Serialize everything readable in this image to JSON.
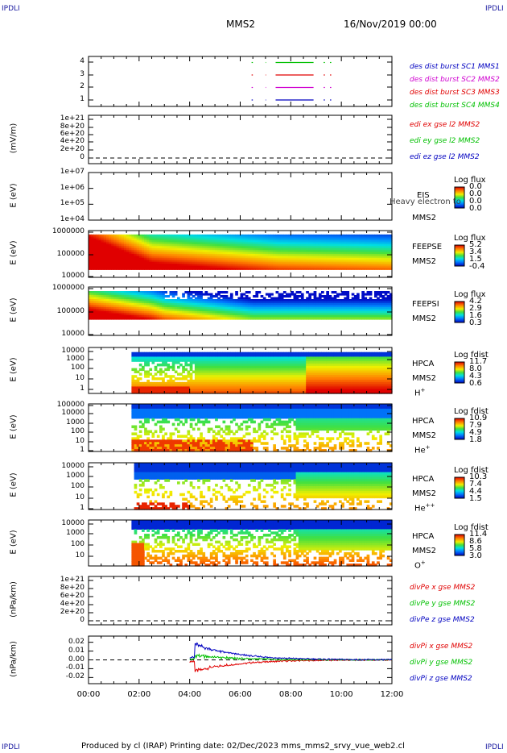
{
  "header": {
    "title": "MMS2",
    "date": "16/Nov/2019 00:00",
    "corner_label": "IPDLI"
  },
  "footer": {
    "text": "Produced by cl (IRAP)   Printing date: 02/Dec/2023   mms_mms2_srvy_vue_web2.cl"
  },
  "colors": {
    "red": "#e00000",
    "green": "#00c000",
    "blue": "#0000c0",
    "magenta": "#d000d0"
  },
  "x_axis": {
    "ticks": [
      "00:00",
      "02:00",
      "04:00",
      "06:00",
      "08:00",
      "10:00",
      "12:00"
    ],
    "range_hours": [
      0,
      12
    ]
  },
  "chart_data": [
    {
      "type": "line",
      "panel": "burst",
      "yticks": [
        "4",
        "3",
        "2",
        "1"
      ],
      "series": [
        {
          "name": "des dist burst SC1 MMS1",
          "color": "#0000c0",
          "level": 1,
          "intervals": [
            [
              6.45,
              6.5
            ],
            [
              7.0,
              7.02
            ],
            [
              7.4,
              8.9
            ],
            [
              9.3,
              9.35
            ],
            [
              9.55,
              9.6
            ]
          ]
        },
        {
          "name": "des dist burst SC2 MMS2",
          "color": "#d000d0",
          "level": 2,
          "intervals": [
            [
              6.45,
              6.5
            ],
            [
              7.0,
              7.02
            ],
            [
              7.4,
              8.9
            ],
            [
              9.3,
              9.35
            ],
            [
              9.55,
              9.6
            ]
          ]
        },
        {
          "name": "des dist burst SC3 MMS3",
          "color": "#e00000",
          "level": 3,
          "intervals": [
            [
              6.45,
              6.5
            ],
            [
              7.0,
              7.02
            ],
            [
              7.4,
              8.9
            ],
            [
              9.3,
              9.35
            ],
            [
              9.55,
              9.6
            ]
          ]
        },
        {
          "name": "des dist burst SC4 MMS4",
          "color": "#00c000",
          "level": 4,
          "intervals": [
            [
              6.45,
              6.5
            ],
            [
              7.0,
              7.02
            ],
            [
              7.4,
              8.9
            ],
            [
              9.3,
              9.35
            ],
            [
              9.55,
              9.6
            ]
          ]
        }
      ]
    },
    {
      "type": "line",
      "panel": "edi",
      "ylabel": "(mV/m)",
      "yticks": [
        "1e+21",
        "8e+20",
        "6e+20",
        "4e+20",
        "2e+20",
        "0"
      ],
      "series": [
        {
          "name": "edi ex gse l2 MMS2",
          "color": "#e00000"
        },
        {
          "name": "edi ey gse l2 MMS2",
          "color": "#00c000"
        },
        {
          "name": "edi ez gse l2 MMS2",
          "color": "#0000c0"
        }
      ]
    },
    {
      "type": "heatmap",
      "panel": "eis",
      "ylabel": "E (eV)",
      "yticks": [
        "1e+07",
        "1e+06",
        "1e+05",
        "1e+04"
      ],
      "instrument": "EIS",
      "overlay": "Heavy electron to",
      "spacecraft": "MMS2",
      "colorbar": {
        "title": "Log flux",
        "ticks": [
          "0.0",
          "0.0",
          "0.0",
          "0.0"
        ]
      }
    },
    {
      "type": "heatmap",
      "panel": "feepse",
      "ylabel": "E (eV)",
      "yticks": [
        "1000000",
        "100000",
        "10000"
      ],
      "instrument": "FEEPSE",
      "spacecraft": "MMS2",
      "colorbar": {
        "title": "Log flux",
        "ticks": [
          "5.2",
          "3.4",
          "1.5",
          "-0.4"
        ]
      }
    },
    {
      "type": "heatmap",
      "panel": "feepsi",
      "ylabel": "E (eV)",
      "yticks": [
        "1000000",
        "100000",
        "10000"
      ],
      "instrument": "FEEPSI",
      "spacecraft": "MMS2",
      "colorbar": {
        "title": "Log flux",
        "ticks": [
          "4.2",
          "2.9",
          "1.6",
          "0.3"
        ]
      }
    },
    {
      "type": "heatmap",
      "panel": "hpca-h",
      "ylabel": "E (eV)",
      "yticks": [
        "10000",
        "1000",
        "100",
        "10",
        "1"
      ],
      "instrument": "HPCA",
      "spacecraft": "MMS2",
      "species": "H",
      "species_sup": "+",
      "colorbar": {
        "title": "Log fdist",
        "ticks": [
          "11.7",
          "8.0",
          "4.3",
          "0.6"
        ]
      }
    },
    {
      "type": "heatmap",
      "panel": "hpca-he",
      "ylabel": "E (eV)",
      "yticks": [
        "100000",
        "10000",
        "1000",
        "100",
        "10",
        "1"
      ],
      "instrument": "HPCA",
      "spacecraft": "MMS2",
      "species": "He",
      "species_sup": "+",
      "colorbar": {
        "title": "Log fdist",
        "ticks": [
          "10.9",
          "7.9",
          "4.9",
          "1.8"
        ]
      }
    },
    {
      "type": "heatmap",
      "panel": "hpca-he2",
      "ylabel": "E (eV)",
      "yticks": [
        "10000",
        "1000",
        "100",
        "10",
        "1"
      ],
      "instrument": "HPCA",
      "spacecraft": "MMS2",
      "species": "He",
      "species_sup": "++",
      "colorbar": {
        "title": "Log fdist",
        "ticks": [
          "10.3",
          "7.4",
          "4.4",
          "1.5"
        ]
      }
    },
    {
      "type": "heatmap",
      "panel": "hpca-o",
      "ylabel": "E (eV)",
      "yticks": [
        "10000",
        "1000",
        "100",
        "10"
      ],
      "instrument": "HPCA",
      "spacecraft": "MMS2",
      "species": "O",
      "species_sup": "+",
      "colorbar": {
        "title": "Log fdist",
        "ticks": [
          "11.4",
          "8.6",
          "5.8",
          "3.0"
        ]
      }
    },
    {
      "type": "line",
      "panel": "divpe",
      "ylabel": "(nPa/km)",
      "yticks": [
        "1e+21",
        "8e+20",
        "6e+20",
        "4e+20",
        "2e+20",
        "0"
      ],
      "series": [
        {
          "name": "divPe x gse MMS2",
          "color": "#e00000"
        },
        {
          "name": "divPe y gse MMS2",
          "color": "#00c000"
        },
        {
          "name": "divPe z gse MMS2",
          "color": "#0000c0"
        }
      ]
    },
    {
      "type": "line",
      "panel": "divpi",
      "ylabel": "(nPa/km)",
      "yticks": [
        "0.02",
        "0.01",
        "0.00",
        "-0.01",
        "-0.02"
      ],
      "ylim": [
        -0.027,
        0.027
      ],
      "series": [
        {
          "name": "divPi x gse MMS2",
          "color": "#e00000"
        },
        {
          "name": "divPi y gse MMS2",
          "color": "#00c000"
        },
        {
          "name": "divPi z gse MMS2",
          "color": "#0000c0"
        }
      ]
    }
  ]
}
